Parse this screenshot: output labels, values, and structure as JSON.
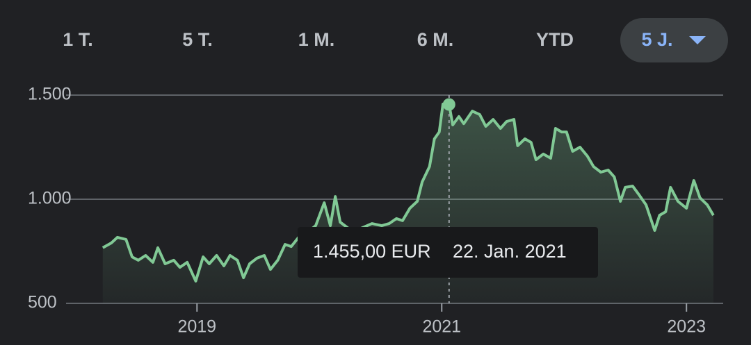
{
  "tabs": [
    "1 T.",
    "5 T.",
    "1 M.",
    "6 M.",
    "YTD",
    "5 J."
  ],
  "selected_tab": 5,
  "chart_data": {
    "type": "line",
    "color": "#81c995",
    "grid": true,
    "xlim": [
      2017.93,
      2023.3
    ],
    "xticks": [
      2019,
      2021,
      2023
    ],
    "ylim": [
      500,
      1500
    ],
    "yticks": [
      {
        "value": 1500,
        "label": "1.500"
      },
      {
        "value": 1000,
        "label": "1.000"
      },
      500
    ],
    "x": [
      2018.23,
      2018.3,
      2018.35,
      2018.42,
      2018.47,
      2018.52,
      2018.58,
      2018.64,
      2018.68,
      2018.74,
      2018.81,
      2018.86,
      2018.92,
      2018.99,
      2019.05,
      2019.1,
      2019.16,
      2019.22,
      2019.27,
      2019.33,
      2019.38,
      2019.43,
      2019.49,
      2019.55,
      2019.6,
      2019.66,
      2019.72,
      2019.77,
      2019.83,
      2019.9,
      2019.97,
      2020.04,
      2020.09,
      2020.13,
      2020.17,
      2020.26,
      2020.34,
      2020.43,
      2020.51,
      2020.57,
      2020.63,
      2020.68,
      2020.74,
      2020.8,
      2020.84,
      2020.9,
      2020.94,
      2020.98,
      2021.01,
      2021.06,
      2021.09,
      2021.14,
      2021.18,
      2021.25,
      2021.31,
      2021.36,
      2021.42,
      2021.48,
      2021.53,
      2021.59,
      2021.62,
      2021.68,
      2021.73,
      2021.77,
      2021.83,
      2021.89,
      2021.93,
      2021.98,
      2022.02,
      2022.07,
      2022.13,
      2022.19,
      2022.24,
      2022.3,
      2022.36,
      2022.41,
      2022.46,
      2022.5,
      2022.56,
      2022.61,
      2022.67,
      2022.74,
      2022.78,
      2022.83,
      2022.87,
      2022.93,
      2023.0,
      2023.06,
      2023.11,
      2023.17,
      2023.22
    ],
    "values": [
      767,
      790,
      817,
      807,
      723,
      707,
      730,
      697,
      767,
      690,
      707,
      673,
      697,
      607,
      723,
      690,
      730,
      680,
      730,
      707,
      623,
      690,
      717,
      730,
      663,
      707,
      783,
      773,
      817,
      840,
      873,
      983,
      873,
      1013,
      890,
      850,
      860,
      883,
      873,
      883,
      907,
      897,
      957,
      990,
      1083,
      1157,
      1290,
      1323,
      1457,
      1455,
      1357,
      1397,
      1363,
      1423,
      1407,
      1350,
      1383,
      1340,
      1373,
      1383,
      1257,
      1290,
      1273,
      1190,
      1217,
      1197,
      1340,
      1323,
      1323,
      1230,
      1250,
      1207,
      1157,
      1130,
      1140,
      1107,
      990,
      1057,
      1063,
      1023,
      973,
      850,
      923,
      940,
      1057,
      990,
      957,
      1090,
      1007,
      973,
      923
    ],
    "tooltip": {
      "x": 2021.06,
      "value": 1455,
      "label": "1.455,00 EUR",
      "date": "22. Jan. 2021"
    }
  }
}
